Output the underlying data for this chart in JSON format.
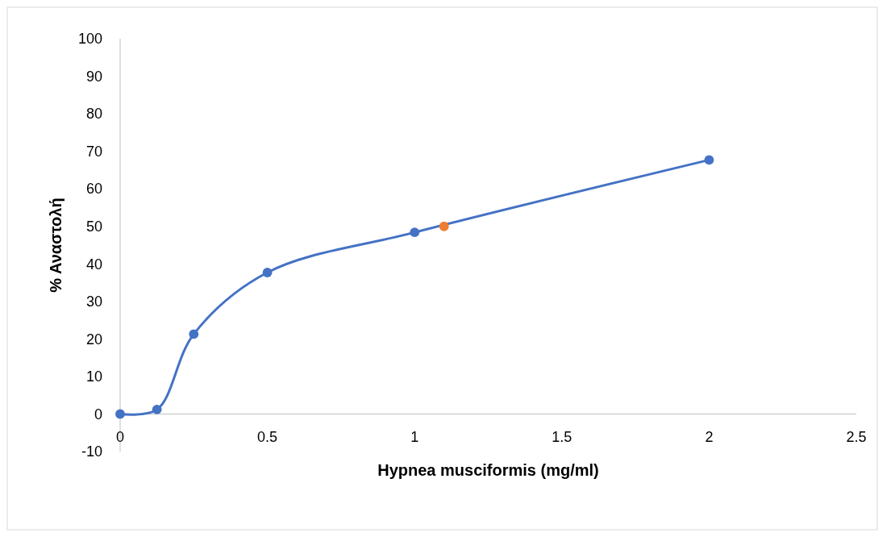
{
  "chart_data": {
    "type": "line",
    "xlabel": "Hypnea musciformis (mg/ml)",
    "ylabel": "% Αναστολή",
    "xlim": [
      0,
      2.5
    ],
    "xticks": [
      0,
      0.5,
      1,
      1.5,
      2,
      2.5
    ],
    "ylim": [
      -10,
      100
    ],
    "yticks": [
      -10,
      0,
      10,
      20,
      30,
      40,
      50,
      60,
      70,
      80,
      90,
      100
    ],
    "grid": false,
    "marker": "circle",
    "line_style": "solid",
    "series": [
      {
        "color": "#4472c4",
        "x": [
          0,
          0.125,
          0.25,
          0.5,
          1,
          2
        ],
        "values": [
          0,
          1.2,
          21.3,
          37.7,
          48.4,
          67.7
        ]
      },
      {
        "type": "scatter",
        "color": "#ed7d31",
        "x": [
          1.1
        ],
        "values": [
          50
        ]
      }
    ]
  }
}
